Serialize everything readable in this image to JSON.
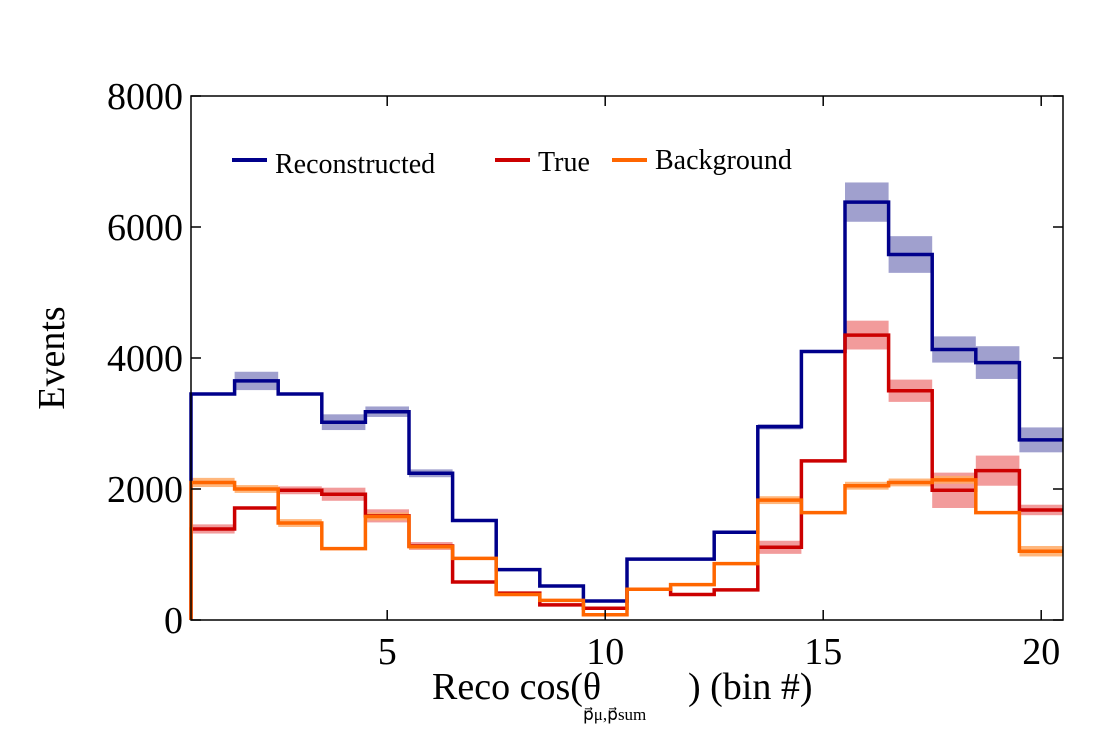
{
  "chart_data": {
    "type": "line",
    "drawstyle": "steps",
    "xlabel_main": "Reco cos(θ",
    "xlabel_subscript": "p⃗μ,p⃗sum",
    "xlabel_tail": ") (bin #)",
    "ylabel": "Events",
    "xlim": [
      0.5,
      20.5
    ],
    "ylim": [
      0,
      8000
    ],
    "xticks": [
      5,
      10,
      15,
      20
    ],
    "yticks": [
      0,
      2000,
      4000,
      6000,
      8000
    ],
    "grid": false,
    "legend_position": "top-left",
    "x": [
      1,
      2,
      3,
      4,
      5,
      6,
      7,
      8,
      9,
      10,
      11,
      12,
      13,
      14,
      15,
      16,
      17,
      18,
      19,
      20
    ],
    "series": [
      {
        "name": "Reconstructed",
        "color": "#00008b",
        "band_color": "#8f8fc6",
        "values": [
          3450,
          3650,
          3450,
          3020,
          3180,
          2240,
          1520,
          770,
          520,
          290,
          930,
          930,
          1340,
          2950,
          4100,
          6380,
          5580,
          4130,
          3930,
          2750
        ],
        "uncertainty": [
          0,
          140,
          0,
          120,
          80,
          60,
          0,
          0,
          0,
          0,
          0,
          0,
          0,
          40,
          0,
          300,
          280,
          200,
          250,
          190
        ]
      },
      {
        "name": "True",
        "color": "#cc0000",
        "band_color": "#f08a8a",
        "values": [
          1390,
          1710,
          1980,
          1920,
          1590,
          1130,
          580,
          410,
          230,
          180,
          470,
          390,
          460,
          1110,
          2430,
          4350,
          3500,
          1980,
          2280,
          1680
        ],
        "uncertainty": [
          70,
          0,
          60,
          100,
          100,
          60,
          0,
          0,
          0,
          0,
          0,
          0,
          0,
          100,
          0,
          220,
          170,
          270,
          230,
          80
        ]
      },
      {
        "name": "Background",
        "color": "#ff6600",
        "band_color": "#ffaa66",
        "values": [
          2100,
          2000,
          1480,
          1090,
          1580,
          1120,
          940,
          390,
          300,
          80,
          470,
          540,
          860,
          1830,
          1640,
          2050,
          2100,
          2140,
          1640,
          1050
        ],
        "uncertainty": [
          70,
          60,
          60,
          0,
          60,
          40,
          0,
          0,
          0,
          0,
          0,
          0,
          0,
          60,
          0,
          60,
          60,
          60,
          0,
          80
        ]
      }
    ]
  }
}
